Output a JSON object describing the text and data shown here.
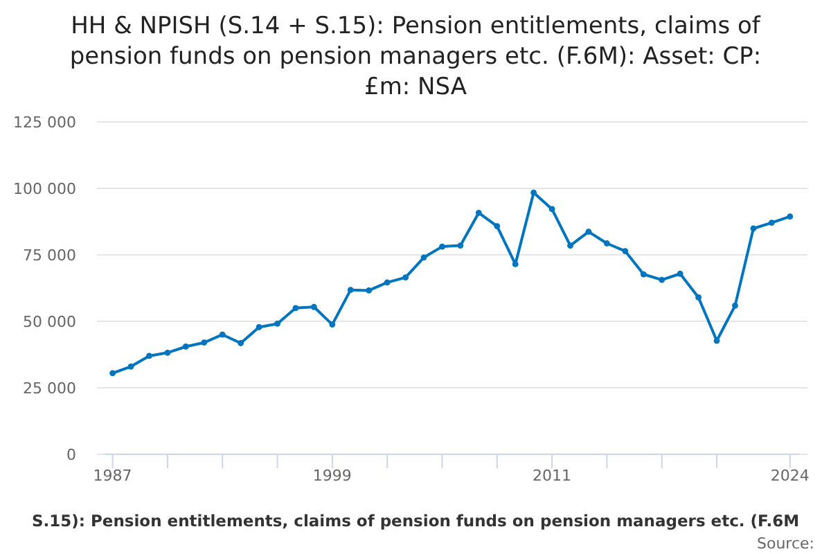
{
  "chart_data": {
    "type": "line",
    "title": "HH & NPISH (S.14 + S.15): Pension entitlements, claims of pension funds on pension managers etc. (F.6M): Asset: CP: £m: NSA",
    "x": [
      1987,
      1988,
      1989,
      1990,
      1991,
      1992,
      1993,
      1994,
      1995,
      1996,
      1997,
      1998,
      1999,
      2000,
      2001,
      2002,
      2003,
      2004,
      2005,
      2006,
      2007,
      2008,
      2009,
      2010,
      2011,
      2012,
      2013,
      2014,
      2015,
      2016,
      2017,
      2018,
      2019,
      2020,
      2021,
      2022,
      2023,
      2024
    ],
    "series": [
      {
        "name": "S.15): Pension entitlements, claims of pension funds on pension managers etc. (F.6M",
        "color": "#0075bf",
        "values": [
          30500,
          33000,
          37000,
          38200,
          40500,
          42000,
          45000,
          41800,
          47800,
          49100,
          55000,
          55400,
          48800,
          61800,
          61600,
          64600,
          66500,
          74000,
          78100,
          78500,
          90800,
          85800,
          71500,
          98400,
          92200,
          78500,
          83700,
          79300,
          76400,
          67700,
          65600,
          67900,
          59000,
          42700,
          55900,
          84900,
          87100,
          89400
        ]
      }
    ],
    "xlim": [
      1986.6,
      2024.5
    ],
    "xticks": [
      1987,
      {
        "value": 1990,
        "label": null
      },
      {
        "value": 1993,
        "label": null
      },
      {
        "value": 1996,
        "label": null
      },
      1999,
      {
        "value": 2002,
        "label": null
      },
      {
        "value": 2005,
        "label": null
      },
      {
        "value": 2008,
        "label": null
      },
      2011,
      {
        "value": 2014,
        "label": null
      },
      {
        "value": 2017,
        "label": null
      },
      {
        "value": 2020,
        "label": null
      },
      2024
    ],
    "ylim": [
      0,
      125000
    ],
    "yticks": [
      {
        "value": 0,
        "label": "0"
      },
      {
        "value": 25000,
        "label": "25 000"
      },
      {
        "value": 50000,
        "label": "50 000"
      },
      {
        "value": 75000,
        "label": "75 000"
      },
      {
        "value": 100000,
        "label": "100 000"
      },
      {
        "value": 125000,
        "label": "125 000"
      }
    ],
    "grid": "y",
    "marker": "circle",
    "line_style": "solid",
    "legend": "bottom",
    "annotations": [
      "Source:"
    ]
  }
}
